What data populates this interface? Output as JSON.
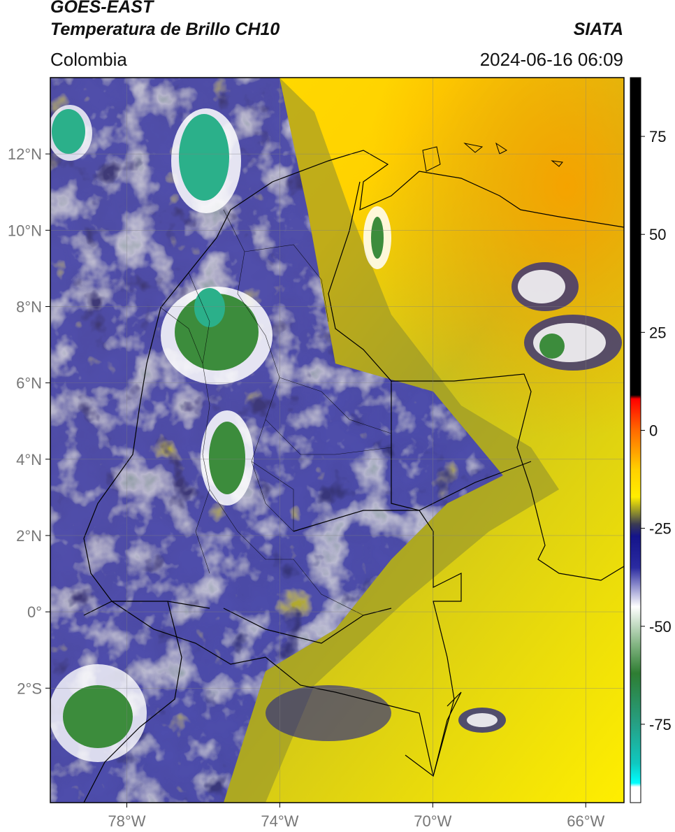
{
  "header": {
    "satellite": "GOES-EAST",
    "product": "Temperatura de Brillo CH10",
    "organization": "SIATA",
    "region": "Colombia",
    "timestamp": "2024-06-16 06:09"
  },
  "map": {
    "extent": {
      "lon_min": -80,
      "lon_max": -65,
      "lat_min": -5,
      "lat_max": 14
    },
    "lon_ticks": [
      {
        "value": -78,
        "label": "78°W"
      },
      {
        "value": -74,
        "label": "74°W"
      },
      {
        "value": -70,
        "label": "70°W"
      },
      {
        "value": -66,
        "label": "66°W"
      }
    ],
    "lat_ticks": [
      {
        "value": 12,
        "label": "12°N"
      },
      {
        "value": 10,
        "label": "10°N"
      },
      {
        "value": 8,
        "label": "8°N"
      },
      {
        "value": 6,
        "label": "6°N"
      },
      {
        "value": 4,
        "label": "4°N"
      },
      {
        "value": 2,
        "label": "2°N"
      },
      {
        "value": 0,
        "label": "0°"
      },
      {
        "value": -2,
        "label": "2°S"
      }
    ],
    "colors": {
      "warm_far": "#f5a300",
      "warm": "#ffd200",
      "mid": "#ffee00",
      "olive": "#b9b21e",
      "dark_olive": "#6d6d33",
      "blue": "#1d1d8c",
      "white": "#ffffff",
      "green": "#3c8c3c",
      "teal": "#2bb08a"
    }
  },
  "colorbar": {
    "min": -95,
    "max": 90,
    "ticks": [
      {
        "value": 75,
        "label": "75"
      },
      {
        "value": 50,
        "label": "50"
      },
      {
        "value": 25,
        "label": "25"
      },
      {
        "value": 0,
        "label": "0"
      },
      {
        "value": -25,
        "label": "-25"
      },
      {
        "value": -50,
        "label": "-50"
      },
      {
        "value": -75,
        "label": "-75"
      }
    ],
    "stops": [
      {
        "value": 90,
        "color": "#000000"
      },
      {
        "value": 9,
        "color": "#000000"
      },
      {
        "value": 8,
        "color": "#ff0000"
      },
      {
        "value": 0,
        "color": "#ff6a00"
      },
      {
        "value": -10,
        "color": "#ffd000"
      },
      {
        "value": -17,
        "color": "#ffee00"
      },
      {
        "value": -21,
        "color": "#8d8d2e"
      },
      {
        "value": -24,
        "color": "#3a3a54"
      },
      {
        "value": -27,
        "color": "#14148a"
      },
      {
        "value": -35,
        "color": "#2a2aa0"
      },
      {
        "value": -45,
        "color": "#ffffff"
      },
      {
        "value": -55,
        "color": "#7fb27f"
      },
      {
        "value": -62,
        "color": "#2e7d32"
      },
      {
        "value": -75,
        "color": "#26a085"
      },
      {
        "value": -85,
        "color": "#10c8c0"
      },
      {
        "value": -90,
        "color": "#00ffff"
      },
      {
        "value": -91,
        "color": "#ffffff"
      },
      {
        "value": -95,
        "color": "#ffffff"
      }
    ]
  }
}
